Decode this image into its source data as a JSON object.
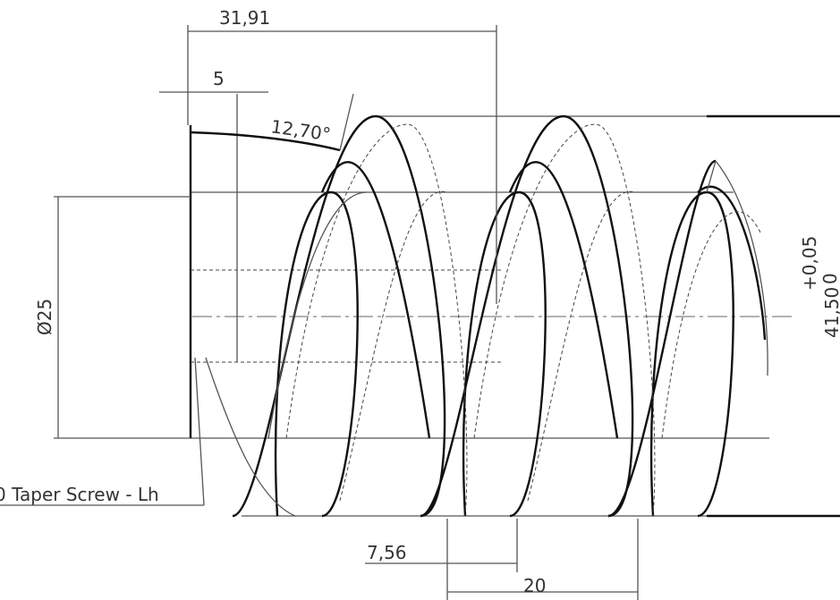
{
  "dimensions": [
    "31,91",
    "5",
    "12,70°",
    "Ø25",
    "41,50",
    "+0,05",
    "0",
    "7,56",
    "20"
  ],
  "callout": "0 Taper Screw - Lh"
}
